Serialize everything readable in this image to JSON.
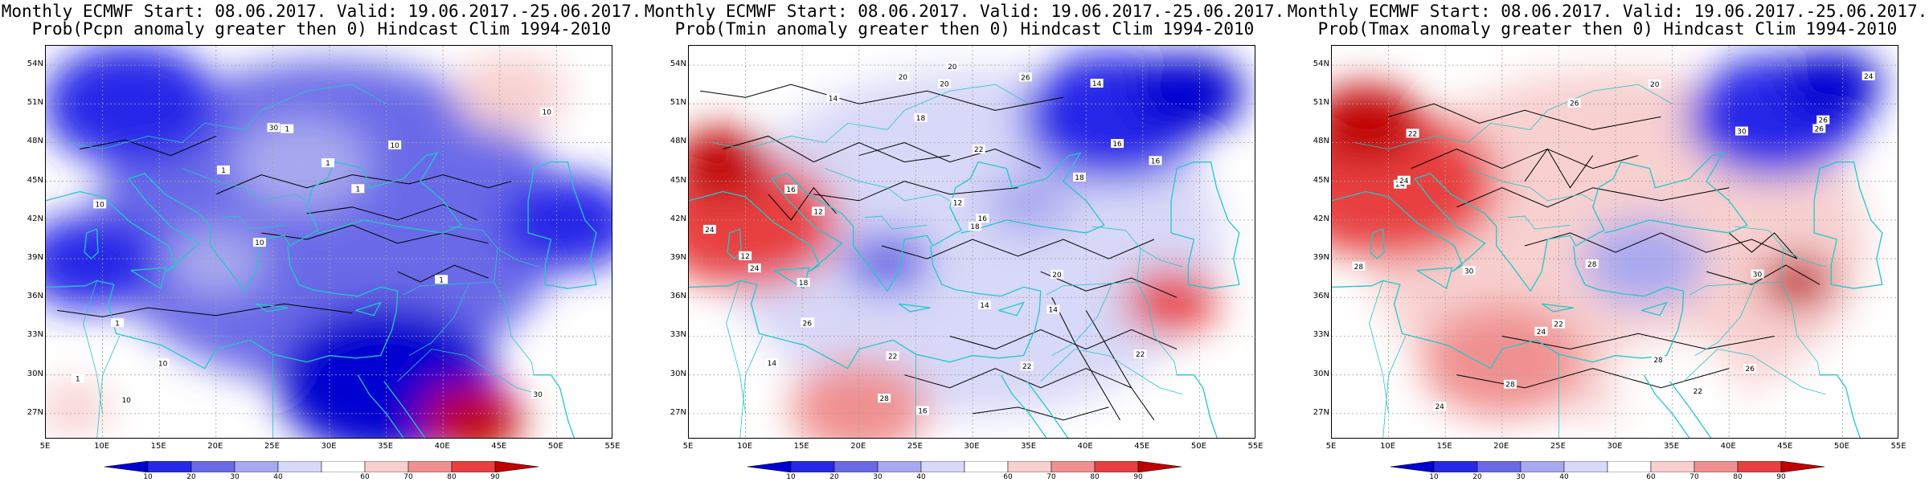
{
  "panels": [
    {
      "title_line1": "Monthly ECMWF Start: 08.06.2017. Valid: 19.06.2017.-25.06.2017.",
      "title_line2": "Prob(Pcpn anomaly greater then 0) Hindcast Clim 1994-2010",
      "variable": "precipitation",
      "dominant_tone": "blue",
      "contour_labels": [
        "30",
        "10",
        "10",
        "10",
        "10",
        "10",
        "30",
        "1",
        "1",
        "1",
        "1",
        "10",
        "1",
        "1",
        "1"
      ]
    },
    {
      "title_line1": "Monthly ECMWF Start: 08.06.2017. Valid: 19.06.2017.-25.06.2017.",
      "title_line2": "Prob(Tmin anomaly greater then 0) Hindcast Clim 1994-2010",
      "variable": "tmin",
      "dominant_tone": "mixed",
      "contour_labels": [
        "14",
        "14",
        "14",
        "16",
        "14",
        "12",
        "18",
        "14",
        "16",
        "18",
        "12",
        "20",
        "14",
        "18",
        "16",
        "20",
        "22",
        "24",
        "26",
        "28",
        "22",
        "20",
        "18",
        "16",
        "12",
        "22",
        "24",
        "26",
        "22",
        "20",
        "16"
      ]
    },
    {
      "title_line1": "Monthly ECMWF Start: 08.06.2017. Valid: 19.06.2017.-25.06.2017.",
      "title_line2": "Prob(Tmax anomaly greater then 0) Hindcast Clim 1994-2010",
      "variable": "tmax",
      "dominant_tone": "red-west",
      "contour_labels": [
        "24",
        "22",
        "20",
        "24",
        "26",
        "28",
        "24",
        "26",
        "28",
        "24",
        "22",
        "30",
        "26",
        "28",
        "24",
        "22",
        "30",
        "28",
        "26",
        "30"
      ]
    }
  ],
  "axes": {
    "lat_labels": [
      "54N",
      "51N",
      "48N",
      "45N",
      "42N",
      "39N",
      "36N",
      "33N",
      "30N",
      "27N"
    ],
    "lon_labels": [
      "5E",
      "10E",
      "15E",
      "20E",
      "25E",
      "30E",
      "35E",
      "40E",
      "45E",
      "50E",
      "55E"
    ]
  },
  "colorbar": {
    "labels": [
      "10",
      "20",
      "30",
      "40",
      "60",
      "70",
      "80",
      "90"
    ],
    "colors": [
      "#0000d0",
      "#2828e8",
      "#6a6ae8",
      "#a8a8f0",
      "#d8d8f8",
      "#ffffff",
      "#f8d0d0",
      "#f09090",
      "#e84040",
      "#c00000"
    ]
  },
  "colors": {
    "coastline": "#22c8c8",
    "contour": "#000000",
    "grid": "#a0a0a0"
  }
}
